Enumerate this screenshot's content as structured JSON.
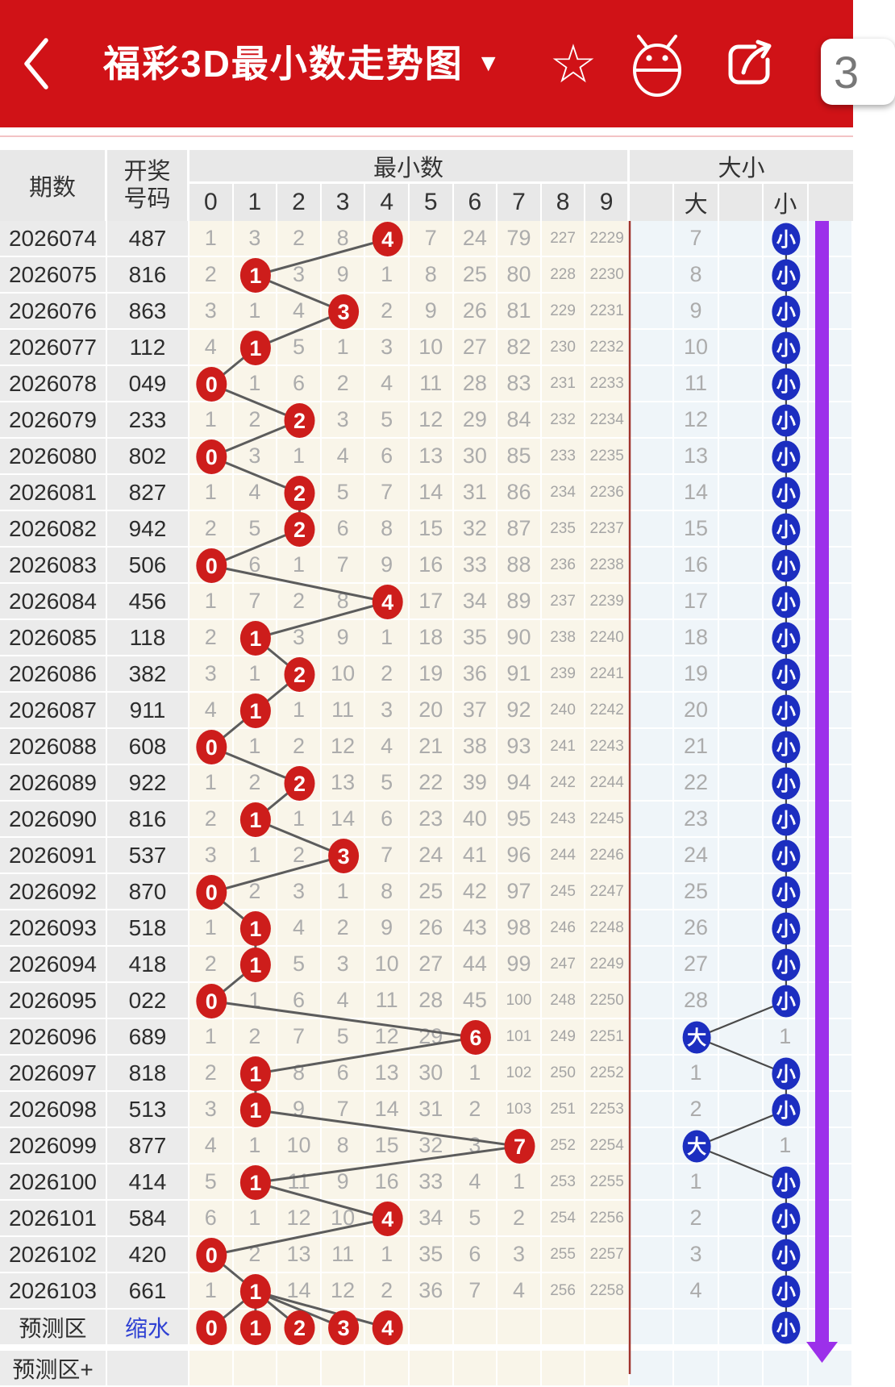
{
  "header": {
    "title": "福彩3D最小数走势图",
    "caret": "▼",
    "badge": "3",
    "icons": [
      "back-chevron",
      "star",
      "android-robot",
      "share",
      "floating-number-badge"
    ]
  },
  "table": {
    "col_period": "期数",
    "col_code_line1": "开奖",
    "col_code_line2": "号码",
    "group_min": "最小数",
    "digits": [
      "0",
      "1",
      "2",
      "3",
      "4",
      "5",
      "6",
      "7",
      "8",
      "9"
    ],
    "group_bs": "大小",
    "col_big": "大",
    "col_small": "小",
    "big_char": "大",
    "small_char": "小"
  },
  "rows": [
    {
      "period": "2026074",
      "code": "487",
      "cells": [
        "1",
        "3",
        "2",
        "8",
        "4",
        "7",
        "24",
        "79",
        "227",
        "2229"
      ],
      "hit": 4,
      "bs": "x",
      "bsv": "7"
    },
    {
      "period": "2026075",
      "code": "816",
      "cells": [
        "2",
        "1",
        "3",
        "9",
        "1",
        "8",
        "25",
        "80",
        "228",
        "2230"
      ],
      "hit": 1,
      "bs": "x",
      "bsv": "8"
    },
    {
      "period": "2026076",
      "code": "863",
      "cells": [
        "3",
        "1",
        "4",
        "3",
        "2",
        "9",
        "26",
        "81",
        "229",
        "2231"
      ],
      "hit": 3,
      "bs": "x",
      "bsv": "9"
    },
    {
      "period": "2026077",
      "code": "112",
      "cells": [
        "4",
        "1",
        "5",
        "1",
        "3",
        "10",
        "27",
        "82",
        "230",
        "2232"
      ],
      "hit": 1,
      "bs": "x",
      "bsv": "10"
    },
    {
      "period": "2026078",
      "code": "049",
      "cells": [
        "0",
        "1",
        "6",
        "2",
        "4",
        "11",
        "28",
        "83",
        "231",
        "2233"
      ],
      "hit": 0,
      "bs": "x",
      "bsv": "11"
    },
    {
      "period": "2026079",
      "code": "233",
      "cells": [
        "1",
        "2",
        "2",
        "3",
        "5",
        "12",
        "29",
        "84",
        "232",
        "2234"
      ],
      "hit": 2,
      "bs": "x",
      "bsv": "12"
    },
    {
      "period": "2026080",
      "code": "802",
      "cells": [
        "0",
        "3",
        "1",
        "4",
        "6",
        "13",
        "30",
        "85",
        "233",
        "2235"
      ],
      "hit": 0,
      "bs": "x",
      "bsv": "13"
    },
    {
      "period": "2026081",
      "code": "827",
      "cells": [
        "1",
        "4",
        "2",
        "5",
        "7",
        "14",
        "31",
        "86",
        "234",
        "2236"
      ],
      "hit": 2,
      "bs": "x",
      "bsv": "14"
    },
    {
      "period": "2026082",
      "code": "942",
      "cells": [
        "2",
        "5",
        "2",
        "6",
        "8",
        "15",
        "32",
        "87",
        "235",
        "2237"
      ],
      "hit": 2,
      "bs": "x",
      "bsv": "15"
    },
    {
      "period": "2026083",
      "code": "506",
      "cells": [
        "0",
        "6",
        "1",
        "7",
        "9",
        "16",
        "33",
        "88",
        "236",
        "2238"
      ],
      "hit": 0,
      "bs": "x",
      "bsv": "16"
    },
    {
      "period": "2026084",
      "code": "456",
      "cells": [
        "1",
        "7",
        "2",
        "8",
        "4",
        "17",
        "34",
        "89",
        "237",
        "2239"
      ],
      "hit": 4,
      "bs": "x",
      "bsv": "17"
    },
    {
      "period": "2026085",
      "code": "118",
      "cells": [
        "2",
        "1",
        "3",
        "9",
        "1",
        "18",
        "35",
        "90",
        "238",
        "2240"
      ],
      "hit": 1,
      "bs": "x",
      "bsv": "18"
    },
    {
      "period": "2026086",
      "code": "382",
      "cells": [
        "3",
        "1",
        "2",
        "10",
        "2",
        "19",
        "36",
        "91",
        "239",
        "2241"
      ],
      "hit": 2,
      "bs": "x",
      "bsv": "19"
    },
    {
      "period": "2026087",
      "code": "911",
      "cells": [
        "4",
        "1",
        "1",
        "11",
        "3",
        "20",
        "37",
        "92",
        "240",
        "2242"
      ],
      "hit": 1,
      "bs": "x",
      "bsv": "20"
    },
    {
      "period": "2026088",
      "code": "608",
      "cells": [
        "0",
        "1",
        "2",
        "12",
        "4",
        "21",
        "38",
        "93",
        "241",
        "2243"
      ],
      "hit": 0,
      "bs": "x",
      "bsv": "21"
    },
    {
      "period": "2026089",
      "code": "922",
      "cells": [
        "1",
        "2",
        "2",
        "13",
        "5",
        "22",
        "39",
        "94",
        "242",
        "2244"
      ],
      "hit": 2,
      "bs": "x",
      "bsv": "22"
    },
    {
      "period": "2026090",
      "code": "816",
      "cells": [
        "2",
        "1",
        "1",
        "14",
        "6",
        "23",
        "40",
        "95",
        "243",
        "2245"
      ],
      "hit": 1,
      "bs": "x",
      "bsv": "23"
    },
    {
      "period": "2026091",
      "code": "537",
      "cells": [
        "3",
        "1",
        "2",
        "3",
        "7",
        "24",
        "41",
        "96",
        "244",
        "2246"
      ],
      "hit": 3,
      "bs": "x",
      "bsv": "24"
    },
    {
      "period": "2026092",
      "code": "870",
      "cells": [
        "0",
        "2",
        "3",
        "1",
        "8",
        "25",
        "42",
        "97",
        "245",
        "2247"
      ],
      "hit": 0,
      "bs": "x",
      "bsv": "25"
    },
    {
      "period": "2026093",
      "code": "518",
      "cells": [
        "1",
        "1",
        "4",
        "2",
        "9",
        "26",
        "43",
        "98",
        "246",
        "2248"
      ],
      "hit": 1,
      "bs": "x",
      "bsv": "26"
    },
    {
      "period": "2026094",
      "code": "418",
      "cells": [
        "2",
        "1",
        "5",
        "3",
        "10",
        "27",
        "44",
        "99",
        "247",
        "2249"
      ],
      "hit": 1,
      "bs": "x",
      "bsv": "27"
    },
    {
      "period": "2026095",
      "code": "022",
      "cells": [
        "0",
        "1",
        "6",
        "4",
        "11",
        "28",
        "45",
        "100",
        "248",
        "2250"
      ],
      "hit": 0,
      "bs": "x",
      "bsv": "28"
    },
    {
      "period": "2026096",
      "code": "689",
      "cells": [
        "1",
        "2",
        "7",
        "5",
        "12",
        "29",
        "6",
        "101",
        "249",
        "2251"
      ],
      "hit": 6,
      "bs": "d",
      "bsv": "1"
    },
    {
      "period": "2026097",
      "code": "818",
      "cells": [
        "2",
        "1",
        "8",
        "6",
        "13",
        "30",
        "1",
        "102",
        "250",
        "2252"
      ],
      "hit": 1,
      "bs": "x",
      "bsv": "1"
    },
    {
      "period": "2026098",
      "code": "513",
      "cells": [
        "3",
        "1",
        "9",
        "7",
        "14",
        "31",
        "2",
        "103",
        "251",
        "2253"
      ],
      "hit": 1,
      "bs": "x",
      "bsv": "2"
    },
    {
      "period": "2026099",
      "code": "877",
      "cells": [
        "4",
        "1",
        "10",
        "8",
        "15",
        "32",
        "3",
        "7",
        "252",
        "2254"
      ],
      "hit": 7,
      "bs": "d",
      "bsv": "1"
    },
    {
      "period": "2026100",
      "code": "414",
      "cells": [
        "5",
        "1",
        "11",
        "9",
        "16",
        "33",
        "4",
        "1",
        "253",
        "2255"
      ],
      "hit": 1,
      "bs": "x",
      "bsv": "1"
    },
    {
      "period": "2026101",
      "code": "584",
      "cells": [
        "6",
        "1",
        "12",
        "10",
        "4",
        "34",
        "5",
        "2",
        "254",
        "2256"
      ],
      "hit": 4,
      "bs": "x",
      "bsv": "2"
    },
    {
      "period": "2026102",
      "code": "420",
      "cells": [
        "0",
        "2",
        "13",
        "11",
        "1",
        "35",
        "6",
        "3",
        "255",
        "2257"
      ],
      "hit": 0,
      "bs": "x",
      "bsv": "3"
    },
    {
      "period": "2026103",
      "code": "661",
      "cells": [
        "1",
        "1",
        "14",
        "12",
        "2",
        "36",
        "7",
        "4",
        "256",
        "2258"
      ],
      "hit": 1,
      "bs": "x",
      "bsv": "4"
    },
    {
      "period": "预测区",
      "code": "缩水",
      "link": true,
      "cells": [
        "0",
        "1",
        "2",
        "3",
        "4",
        "",
        "",
        "",
        "",
        ""
      ],
      "hits": [
        0,
        1,
        2,
        3,
        4
      ],
      "bs": "x",
      "bsv": ""
    }
  ],
  "footer_row": {
    "period": "预测区+"
  },
  "colors": {
    "appbar_red": "#d01217",
    "hit_circle_red": "#cd1d1b",
    "bs_circle_blue": "#1c2ec0",
    "trend_line_gray": "#5c5c5c",
    "purple_arrow": "#9c30ea",
    "red_divider": "#a0342c",
    "link_blue": "#2f41d3",
    "min_col_cream": "#f9f5e9",
    "bs_col_blue": "#eff5f9"
  }
}
